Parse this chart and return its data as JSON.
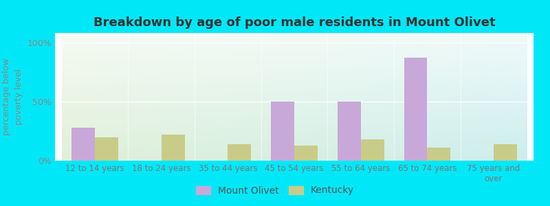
{
  "title": "Breakdown by age of poor male residents in Mount Olivet",
  "categories": [
    "12 to 14 years",
    "18 to 24 years",
    "35 to 44 years",
    "45 to 54 years",
    "55 to 64 years",
    "65 to 74 years",
    "75 years and\nover"
  ],
  "mount_olivet": [
    28,
    0,
    0,
    50,
    50,
    87,
    0
  ],
  "kentucky": [
    20,
    22,
    14,
    13,
    18,
    11,
    14
  ],
  "mount_olivet_color": "#c8a8d8",
  "kentucky_color": "#c8cc88",
  "background_outer": "#00e8f8",
  "ylabel": "percentage below\npoverty level",
  "yticks": [
    0,
    50,
    100
  ],
  "ytick_labels": [
    "0%",
    "50%",
    "100%"
  ],
  "ylim": [
    0,
    108
  ],
  "bar_width": 0.35,
  "title_fontsize": 13,
  "axis_fontsize": 9,
  "legend_fontsize": 10,
  "grad_left": "#e0f0d8",
  "grad_right": "#cceeee"
}
